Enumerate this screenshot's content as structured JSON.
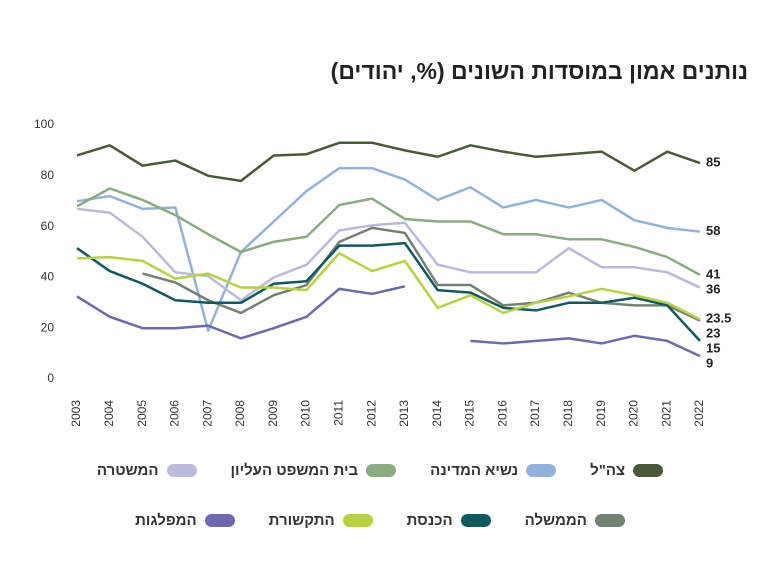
{
  "chart_data": {
    "type": "line",
    "title": "נותנים אמון במוסדות השונים (%, יהודים)",
    "categories": [
      "2003",
      "2004",
      "2005",
      "2006",
      "2007",
      "2008",
      "2009",
      "2010",
      "2011",
      "2012",
      "2013",
      "2014",
      "2015",
      "2016",
      "2017",
      "2018",
      "2019",
      "2020",
      "2021",
      "2022"
    ],
    "ylim": [
      0,
      100
    ],
    "yticks": [
      0,
      20,
      40,
      60,
      80,
      100
    ],
    "grid": false,
    "series": [
      {
        "name": "צה\"ל",
        "color": "#4a5a38",
        "values": [
          88,
          92,
          84,
          86,
          80,
          78,
          88,
          88.5,
          93,
          93,
          90,
          87.5,
          92,
          89.5,
          87.5,
          88.5,
          89.5,
          82,
          89.5,
          85
        ]
      },
      {
        "name": "נשיא המדינה",
        "color": "#93b2db",
        "values": [
          70,
          72,
          67,
          67.5,
          19,
          50,
          62,
          74,
          83,
          83,
          78.5,
          70.5,
          75.5,
          67.5,
          70.5,
          67.5,
          70.5,
          62.5,
          59.5,
          58
        ]
      },
      {
        "name": "בית המשפט העליון",
        "color": "#8bab80",
        "values": [
          68,
          75,
          70.5,
          64.5,
          57,
          50,
          54,
          56,
          68.5,
          71,
          63,
          62,
          62,
          57,
          57,
          55,
          55,
          52,
          48,
          41
        ]
      },
      {
        "name": "המשטרה",
        "color": "#bbbadd",
        "values": [
          67,
          65.5,
          56,
          42,
          40.5,
          31,
          40,
          45,
          58.5,
          60.5,
          61.5,
          45,
          42,
          42,
          42,
          51.5,
          44,
          44,
          42,
          36
        ]
      },
      {
        "name": "הממשלה",
        "color": "#728272",
        "values": [
          null,
          null,
          41.5,
          38,
          31,
          26,
          33,
          37,
          54,
          59.5,
          57.5,
          37,
          37,
          29,
          30,
          34,
          30,
          29,
          29,
          23
        ]
      },
      {
        "name": "הכנסת",
        "color": "#0f5a60",
        "values": [
          51.5,
          42.5,
          37.5,
          31,
          30,
          30,
          37.5,
          38.5,
          52.5,
          52.5,
          53.5,
          35,
          34,
          28,
          27,
          30,
          30,
          32,
          29,
          15
        ]
      },
      {
        "name": "התקשורת",
        "color": "#b6d33d",
        "values": [
          47.5,
          48,
          46.5,
          39.5,
          41.5,
          36,
          36,
          35,
          49.5,
          42.5,
          46.5,
          28,
          33,
          26,
          30,
          32.5,
          35.5,
          33,
          30,
          23.5
        ]
      },
      {
        "name": "המפלגות",
        "color": "#6c69b1",
        "values": [
          32.5,
          24.5,
          20,
          20,
          21,
          16,
          20,
          24.5,
          35.5,
          33.5,
          36.5,
          null,
          15,
          14,
          15,
          16,
          14,
          17,
          15,
          9
        ]
      }
    ]
  }
}
